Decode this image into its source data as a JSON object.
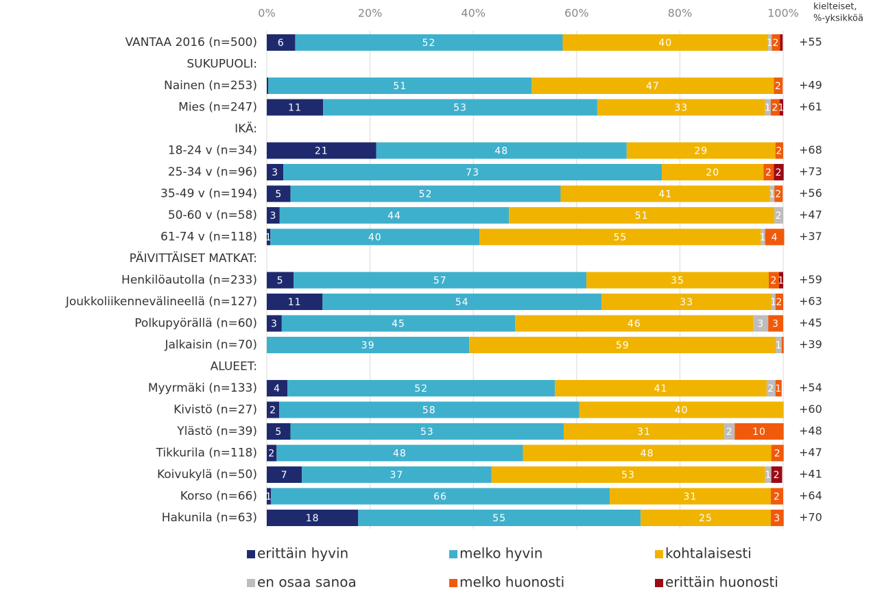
{
  "chart_data": {
    "type": "stacked_barh",
    "header_lines": [
      "kielteiset,",
      "%-yksikköä"
    ],
    "categories": [
      "VANTAA 2016 (n=500)",
      "SUKUPUOLI:",
      "Nainen (n=253)",
      "Mies (n=247)",
      "IKÄ:",
      "18-24 v (n=34)",
      "25-34 v (n=96)",
      "35-49 v (n=194)",
      "50-60 v (n=58)",
      "61-74 v (n=118)",
      "PÄIVITTÄISET MATKAT:",
      "Henkilöautolla (n=233)",
      "Joukkoliikennevälineellä (n=127)",
      "Polkupyörällä (n=60)",
      "Jalkaisin (n=70)",
      "ALUEET:",
      "Myyrmäki (n=133)",
      "Kivistö (n=27)",
      "Ylästö (n=39)",
      "Tikkurila (n=118)",
      "Koivukylä (n=50)",
      "Korso (n=66)",
      "Hakunila (n=63)"
    ],
    "xlim": [
      0,
      100
    ],
    "xticks": [
      {
        "value": 0,
        "label": "0%"
      },
      {
        "value": 20,
        "label": "20%"
      },
      {
        "value": 40,
        "label": "40%"
      },
      {
        "value": 60,
        "label": "60%"
      },
      {
        "value": 80,
        "label": "80%"
      },
      {
        "value": 100,
        "label": "100%"
      }
    ],
    "grid": true,
    "legend": "bottom",
    "series": [
      {
        "name": "erittäin hyvin",
        "color": "#1f2a6e",
        "values": [
          5.5,
          null,
          0.3,
          10.9,
          null,
          21.2,
          3.2,
          4.6,
          2.5,
          0.7,
          null,
          5.2,
          10.8,
          2.9,
          null,
          null,
          4,
          2.4,
          4.6,
          1.9,
          6.8,
          0.8,
          17.7
        ],
        "value_labels": [
          "6",
          null,
          null,
          "11",
          null,
          "21",
          "3",
          "5",
          "3",
          "1",
          null,
          "5",
          "11",
          "3",
          null,
          null,
          "4",
          "2",
          "5",
          "2",
          "7",
          "1",
          "18"
        ]
      },
      {
        "name": "melko hyvin",
        "color": "#3fb0cc",
        "values": [
          51.8,
          null,
          51,
          53.1,
          null,
          48.5,
          73.3,
          52.3,
          44.4,
          40.5,
          null,
          56.7,
          54,
          45.2,
          39.2,
          null,
          51.8,
          58.1,
          52.9,
          47.7,
          36.7,
          65.6,
          54.7
        ],
        "value_labels": [
          "52",
          null,
          "51",
          "53",
          null,
          "48",
          "73",
          "52",
          "44",
          "40",
          null,
          "57",
          "54",
          "45",
          "39",
          null,
          "52",
          "58",
          "53",
          "48",
          "37",
          "66",
          "55"
        ]
      },
      {
        "name": "kohtalaisesti",
        "color": "#f0b400",
        "values": [
          39.8,
          null,
          46.9,
          32.5,
          null,
          28.8,
          19.7,
          40.6,
          51.4,
          54.5,
          null,
          35.3,
          33,
          46.1,
          59.4,
          null,
          41,
          39.6,
          31.1,
          48.1,
          53,
          31.2,
          25.2
        ],
        "value_labels": [
          "40",
          null,
          "47",
          "33",
          null,
          "29",
          "20",
          "41",
          "51",
          "55",
          null,
          "35",
          "33",
          "46",
          "59",
          null,
          "41",
          "40",
          "31",
          "48",
          "53",
          "31",
          "25"
        ]
      },
      {
        "name": "en osaa sanoa",
        "color": "#bdbdbd",
        "values": [
          0.7,
          null,
          null,
          1.1,
          null,
          null,
          null,
          0.8,
          1.7,
          0.8,
          null,
          null,
          0.7,
          2.9,
          1.1,
          null,
          1.7,
          null,
          2,
          null,
          1.2,
          null,
          null
        ],
        "value_labels": [
          "1",
          null,
          null,
          "1",
          null,
          null,
          null,
          "1",
          "2",
          "1",
          null,
          null,
          "1",
          "3",
          "1",
          null,
          "2",
          null,
          "2",
          null,
          "1",
          null,
          null
        ]
      },
      {
        "name": "melko huonosti",
        "color": "#f05a0a",
        "values": [
          1.6,
          null,
          1.7,
          1.7,
          null,
          1.5,
          2,
          1.6,
          null,
          3.7,
          null,
          2,
          1.5,
          2.9,
          0.4,
          null,
          1.2,
          null,
          9.5,
          2.4,
          null,
          2.4,
          2.5
        ],
        "value_labels": [
          "2",
          null,
          "2",
          "2",
          null,
          "2",
          "2",
          "2",
          null,
          "4",
          null,
          "2",
          "2",
          "3",
          null,
          null,
          "1",
          null,
          "10",
          "2",
          null,
          "2",
          "3"
        ]
      },
      {
        "name": "erittäin huonosti",
        "color": "#9c0a14",
        "values": [
          0.5,
          null,
          null,
          0.7,
          null,
          null,
          1.9,
          null,
          null,
          null,
          null,
          0.8,
          null,
          null,
          null,
          null,
          null,
          null,
          null,
          null,
          2.1,
          null,
          null
        ],
        "value_labels": [
          null,
          null,
          null,
          "1",
          null,
          null,
          "2",
          null,
          null,
          null,
          null,
          "1",
          null,
          null,
          null,
          null,
          null,
          null,
          null,
          null,
          "2",
          null,
          null
        ]
      }
    ],
    "net_values": [
      55,
      null,
      49,
      61,
      null,
      68,
      73,
      56,
      47,
      37,
      null,
      59,
      63,
      45,
      39,
      null,
      54,
      60,
      48,
      47,
      41,
      64,
      70
    ],
    "net_labels": [
      "+55",
      null,
      "+49",
      "+61",
      null,
      "+68",
      "+73",
      "+56",
      "+47",
      "+37",
      null,
      "+59",
      "+63",
      "+45",
      "+39",
      null,
      "+54",
      "+60",
      "+48",
      "+47",
      "+41",
      "+64",
      "+70"
    ]
  }
}
